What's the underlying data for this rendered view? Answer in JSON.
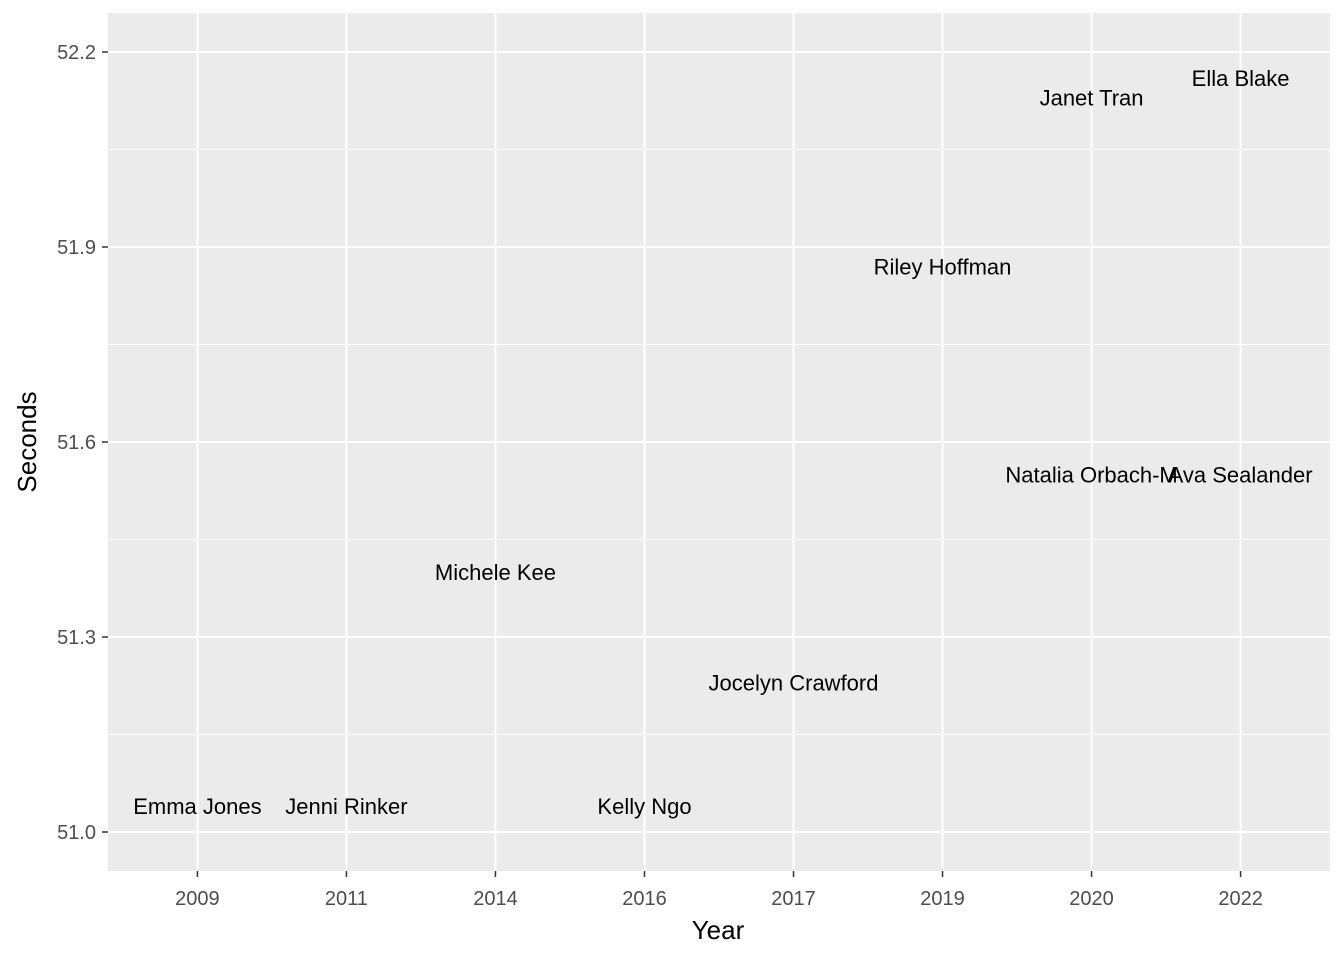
{
  "chart_data": {
    "type": "scatter",
    "title": "",
    "xlabel": "Year",
    "ylabel": "Seconds",
    "x_categories": [
      "2009",
      "2011",
      "2014",
      "2016",
      "2017",
      "2019",
      "2020",
      "2022"
    ],
    "y_ticks": [
      "51.0",
      "51.3",
      "51.6",
      "51.9",
      "52.2"
    ],
    "ylim": [
      51.0,
      52.2
    ],
    "grid": true,
    "legend": "none",
    "points": [
      {
        "label": "Emma Jones",
        "x": "2009",
        "y": 51.04
      },
      {
        "label": "Jenni Rinker",
        "x": "2011",
        "y": 51.04
      },
      {
        "label": "Michele Kee",
        "x": "2014",
        "y": 51.4
      },
      {
        "label": "Kelly Ngo",
        "x": "2016",
        "y": 51.04
      },
      {
        "label": "Jocelyn Crawford",
        "x": "2017",
        "y": 51.23
      },
      {
        "label": "Riley Hoffman",
        "x": "2019",
        "y": 51.87
      },
      {
        "label": "Janet Tran",
        "x": "2020",
        "y": 52.13
      },
      {
        "label": "Natalia Orbach-M",
        "x": "2020",
        "y": 51.55
      },
      {
        "label": "Ella Blake",
        "x": "2022",
        "y": 52.16
      },
      {
        "label": "Ava Sealander",
        "x": "2022",
        "y": 51.55
      }
    ]
  }
}
